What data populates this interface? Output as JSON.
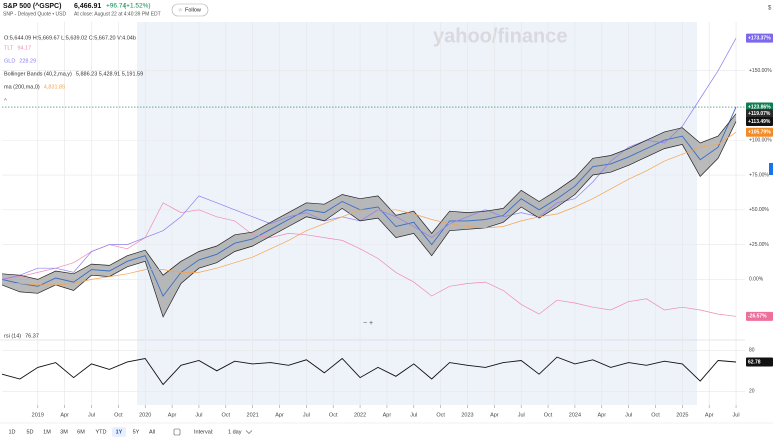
{
  "header": {
    "symbol": "S&P 500 (^GSPC)",
    "exchange": "SNP - Delayed Quote • USD",
    "price": "6,466.91",
    "change": "+96.74",
    "change_pct": "(+1.52%)",
    "status": "At close: August 22 at 4:40:39 PM EDT",
    "follow": "Follow",
    "currency": "$"
  },
  "toolbar": {
    "ranges": [
      "1D",
      "5D",
      "1M",
      "3M",
      "6M",
      "YTD",
      "1Y",
      "5Y",
      "All"
    ],
    "selected": "1Y",
    "interval_label": "Interval:",
    "interval": "1 day",
    "zoom": "−  +"
  },
  "chart_data": [
    {
      "type": "line",
      "watermark": "yahoo/finance",
      "ohlc": "O:5,644.09  H:5,669.67  L:5,639.02  C:5,667.20  V:4.04b",
      "x": [
        "2018-09",
        "2018-11",
        "2019-01",
        "2019-03",
        "2019-05",
        "2019-07",
        "2019-09",
        "2019-11",
        "2020-01",
        "2020-03",
        "2020-05",
        "2020-07",
        "2020-09",
        "2020-11",
        "2021-01",
        "2021-03",
        "2021-05",
        "2021-07",
        "2021-09",
        "2021-11",
        "2022-01",
        "2022-03",
        "2022-05",
        "2022-07",
        "2022-09",
        "2022-11",
        "2023-01",
        "2023-03",
        "2023-05",
        "2023-07",
        "2023-09",
        "2023-11",
        "2024-01",
        "2024-03",
        "2024-05",
        "2024-07",
        "2024-09",
        "2024-11",
        "2025-01",
        "2025-03",
        "2025-05",
        "2025-07"
      ],
      "xlim": [
        "2018-09",
        "2025-08"
      ],
      "ylim": [
        -40,
        185
      ],
      "yticks": [
        {
          "value": 0,
          "label": "0.00%"
        },
        {
          "value": 25,
          "label": "+25.00%"
        },
        {
          "value": 50,
          "label": "+50.00%"
        },
        {
          "value": 75,
          "label": "+75.00%"
        },
        {
          "value": 100,
          "label": "+100.00%"
        },
        {
          "value": 150,
          "label": "+150.00%"
        }
      ],
      "grid": true,
      "series": [
        {
          "color": "#3a6fc4",
          "badge_color": "#107c53",
          "values": [
            0,
            -3,
            -5,
            1,
            -2,
            7,
            6,
            13,
            17,
            -12,
            5,
            14,
            18,
            26,
            29,
            36,
            43,
            50,
            48,
            56,
            50,
            52,
            38,
            41,
            25,
            42,
            42,
            43,
            46,
            58,
            50,
            58,
            67,
            81,
            83,
            88,
            94,
            100,
            103,
            86,
            95,
            123.86
          ],
          "value_labels": [
            null,
            null,
            null,
            null,
            null,
            null,
            null,
            null,
            null,
            null,
            null,
            null,
            null,
            null,
            null,
            null,
            null,
            null,
            null,
            null,
            null,
            null,
            null,
            null,
            null,
            null,
            null,
            null,
            null,
            null,
            null,
            null,
            null,
            null,
            null,
            null,
            null,
            null,
            null,
            null,
            null,
            "+123.86%"
          ]
        },
        {
          "name": "TLT",
          "legend_value": "94.17",
          "color": "#f08cb4",
          "badge_color": "#ee6f9c",
          "values": [
            0,
            2,
            5,
            8,
            12,
            20,
            25,
            22,
            30,
            55,
            48,
            50,
            45,
            42,
            32,
            30,
            33,
            32,
            30,
            28,
            22,
            15,
            5,
            -2,
            -12,
            -5,
            -3,
            -2,
            -8,
            -18,
            -25,
            -15,
            -17,
            -20,
            -22,
            -16,
            -14,
            -22,
            -20,
            -22,
            -25,
            -26.57
          ],
          "value_labels": [
            null,
            null,
            null,
            null,
            null,
            null,
            null,
            null,
            null,
            null,
            null,
            null,
            null,
            null,
            null,
            null,
            null,
            null,
            null,
            null,
            null,
            null,
            null,
            null,
            null,
            null,
            null,
            null,
            null,
            null,
            null,
            null,
            null,
            null,
            null,
            null,
            null,
            null,
            null,
            null,
            null,
            "-26.57%"
          ]
        },
        {
          "name": "GLD",
          "legend_value": "228.29",
          "color": "#8d7ef0",
          "badge_color": "#7b68ee",
          "values": [
            0,
            3,
            8,
            8,
            5,
            20,
            25,
            25,
            30,
            35,
            45,
            60,
            55,
            50,
            45,
            40,
            45,
            48,
            42,
            45,
            42,
            50,
            45,
            38,
            30,
            40,
            45,
            50,
            45,
            48,
            45,
            55,
            58,
            70,
            85,
            95,
            100,
            98,
            110,
            130,
            150,
            173.37
          ],
          "value_labels": [
            null,
            null,
            null,
            null,
            null,
            null,
            null,
            null,
            null,
            null,
            null,
            null,
            null,
            null,
            null,
            null,
            null,
            null,
            null,
            null,
            null,
            null,
            null,
            null,
            null,
            null,
            null,
            null,
            null,
            null,
            null,
            null,
            null,
            null,
            null,
            null,
            null,
            null,
            null,
            null,
            null,
            "+173.37%"
          ]
        },
        {
          "name": "Bollinger Bands (40,2,ma,y)",
          "legend_value": "5,886.23  5,428.91  5,191.59",
          "color": "#222222",
          "badge_color": "#2b2b2b",
          "band_fill": "#a3a3a3",
          "values": [
            4,
            3,
            0,
            6,
            4,
            11,
            10,
            17,
            21,
            3,
            13,
            20,
            24,
            32,
            34,
            41,
            48,
            55,
            54,
            61,
            58,
            60,
            46,
            49,
            33,
            49,
            48,
            49,
            51,
            64,
            56,
            64,
            73,
            87,
            89,
            94,
            100,
            106,
            109,
            98,
            103,
            119.07
          ],
          "value_labels": [
            null,
            null,
            null,
            null,
            null,
            null,
            null,
            null,
            null,
            null,
            null,
            null,
            null,
            null,
            null,
            null,
            null,
            null,
            null,
            null,
            null,
            null,
            null,
            null,
            null,
            null,
            null,
            null,
            null,
            null,
            null,
            null,
            null,
            null,
            null,
            null,
            null,
            null,
            null,
            null,
            null,
            "+119.07%"
          ]
        },
        {
          "color": "#222222",
          "badge_color": "#111111",
          "values": [
            -4,
            -9,
            -10,
            -4,
            -8,
            3,
            2,
            9,
            13,
            -27,
            -3,
            8,
            12,
            20,
            24,
            31,
            38,
            45,
            42,
            51,
            42,
            44,
            30,
            33,
            17,
            35,
            36,
            37,
            41,
            52,
            44,
            52,
            61,
            75,
            77,
            82,
            88,
            94,
            97,
            74,
            87,
            113.49
          ],
          "value_labels": [
            null,
            null,
            null,
            null,
            null,
            null,
            null,
            null,
            null,
            null,
            null,
            null,
            null,
            null,
            null,
            null,
            null,
            null,
            null,
            null,
            null,
            null,
            null,
            null,
            null,
            null,
            null,
            null,
            null,
            null,
            null,
            null,
            null,
            null,
            null,
            null,
            null,
            null,
            null,
            null,
            null,
            "+113.49%"
          ]
        },
        {
          "name": "ma (200,ma,0)",
          "legend_value": "4,831.85",
          "color": "#f4a451",
          "badge_color": "#f28c28",
          "values": [
            -3,
            -3,
            -4,
            -4,
            -3,
            0,
            2,
            4,
            7,
            7,
            5,
            5,
            8,
            12,
            16,
            22,
            28,
            35,
            40,
            45,
            50,
            50,
            50,
            47,
            43,
            40,
            38,
            37,
            38,
            42,
            45,
            47,
            52,
            58,
            65,
            72,
            78,
            85,
            90,
            95,
            97,
            105.79
          ],
          "value_labels": [
            null,
            null,
            null,
            null,
            null,
            null,
            null,
            null,
            null,
            null,
            null,
            null,
            null,
            null,
            null,
            null,
            null,
            null,
            null,
            null,
            null,
            null,
            null,
            null,
            null,
            null,
            null,
            null,
            null,
            null,
            null,
            null,
            null,
            null,
            null,
            null,
            null,
            null,
            null,
            null,
            null,
            "+105.79%"
          ]
        }
      ]
    },
    {
      "type": "line",
      "x": [
        "2018-09",
        "2018-11",
        "2019-01",
        "2019-03",
        "2019-05",
        "2019-07",
        "2019-09",
        "2019-11",
        "2020-01",
        "2020-03",
        "2020-05",
        "2020-07",
        "2020-09",
        "2020-11",
        "2021-01",
        "2021-03",
        "2021-05",
        "2021-07",
        "2021-09",
        "2021-11",
        "2022-01",
        "2022-03",
        "2022-05",
        "2022-07",
        "2022-09",
        "2022-11",
        "2023-01",
        "2023-03",
        "2023-05",
        "2023-07",
        "2023-09",
        "2023-11",
        "2024-01",
        "2024-03",
        "2024-05",
        "2024-07",
        "2024-09",
        "2024-11",
        "2025-01",
        "2025-03",
        "2025-05",
        "2025-07"
      ],
      "xlim": [
        "2018-09",
        "2025-08"
      ],
      "xticks": [
        {
          "value": "2019-01",
          "label": "2019"
        },
        {
          "value": "2019-04",
          "label": "Apr"
        },
        {
          "value": "2019-07",
          "label": "Jul"
        },
        {
          "value": "2019-10",
          "label": "Oct"
        },
        {
          "value": "2020-01",
          "label": "2020"
        },
        {
          "value": "2020-04",
          "label": "Apr"
        },
        {
          "value": "2020-07",
          "label": "Jul"
        },
        {
          "value": "2020-10",
          "label": "Oct"
        },
        {
          "value": "2021-01",
          "label": "2021"
        },
        {
          "value": "2021-04",
          "label": "Apr"
        },
        {
          "value": "2021-07",
          "label": "Jul"
        },
        {
          "value": "2021-10",
          "label": "Oct"
        },
        {
          "value": "2022-01",
          "label": "2022"
        },
        {
          "value": "2022-04",
          "label": "Apr"
        },
        {
          "value": "2022-07",
          "label": "Jul"
        },
        {
          "value": "2022-10",
          "label": "Oct"
        },
        {
          "value": "2023-01",
          "label": "2023"
        },
        {
          "value": "2023-04",
          "label": "Apr"
        },
        {
          "value": "2023-07",
          "label": "Jul"
        },
        {
          "value": "2023-10",
          "label": "Oct"
        },
        {
          "value": "2024-01",
          "label": "2024"
        },
        {
          "value": "2024-04",
          "label": "Apr"
        },
        {
          "value": "2024-07",
          "label": "Jul"
        },
        {
          "value": "2024-10",
          "label": "Oct"
        },
        {
          "value": "2025-01",
          "label": "2025"
        },
        {
          "value": "2025-04",
          "label": "Apr"
        },
        {
          "value": "2025-07",
          "label": "Jul"
        }
      ],
      "ylim": [
        0,
        95
      ],
      "yticks": [
        20,
        80
      ],
      "grid": true,
      "series": [
        {
          "name": "rsi (14)",
          "legend_value": "76.37",
          "color": "#111111",
          "badge_color": "#111111",
          "values": [
            45,
            38,
            55,
            62,
            40,
            60,
            52,
            63,
            68,
            30,
            58,
            65,
            50,
            64,
            60,
            62,
            58,
            66,
            47,
            68,
            40,
            55,
            42,
            60,
            38,
            62,
            58,
            55,
            62,
            65,
            45,
            70,
            60,
            66,
            55,
            62,
            58,
            64,
            60,
            35,
            65,
            62.78
          ]
        }
      ]
    }
  ]
}
